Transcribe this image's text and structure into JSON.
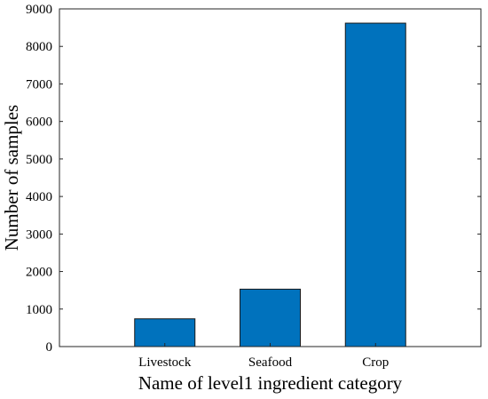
{
  "chart_data": {
    "type": "bar",
    "categories": [
      "Livestock",
      "Seafood",
      "Crop"
    ],
    "values": [
      740,
      1530,
      8620
    ],
    "title": "",
    "xlabel": "Name of level1 ingredient category",
    "ylabel": "Number of samples",
    "ylim": [
      0,
      9000
    ],
    "yticks": [
      0,
      1000,
      2000,
      3000,
      4000,
      5000,
      6000,
      7000,
      8000,
      9000
    ],
    "grid": false,
    "legend": "none",
    "colors": {
      "bar": "#0072BD",
      "bar_edge": "#1a1a1a",
      "axis": "#262626"
    }
  }
}
